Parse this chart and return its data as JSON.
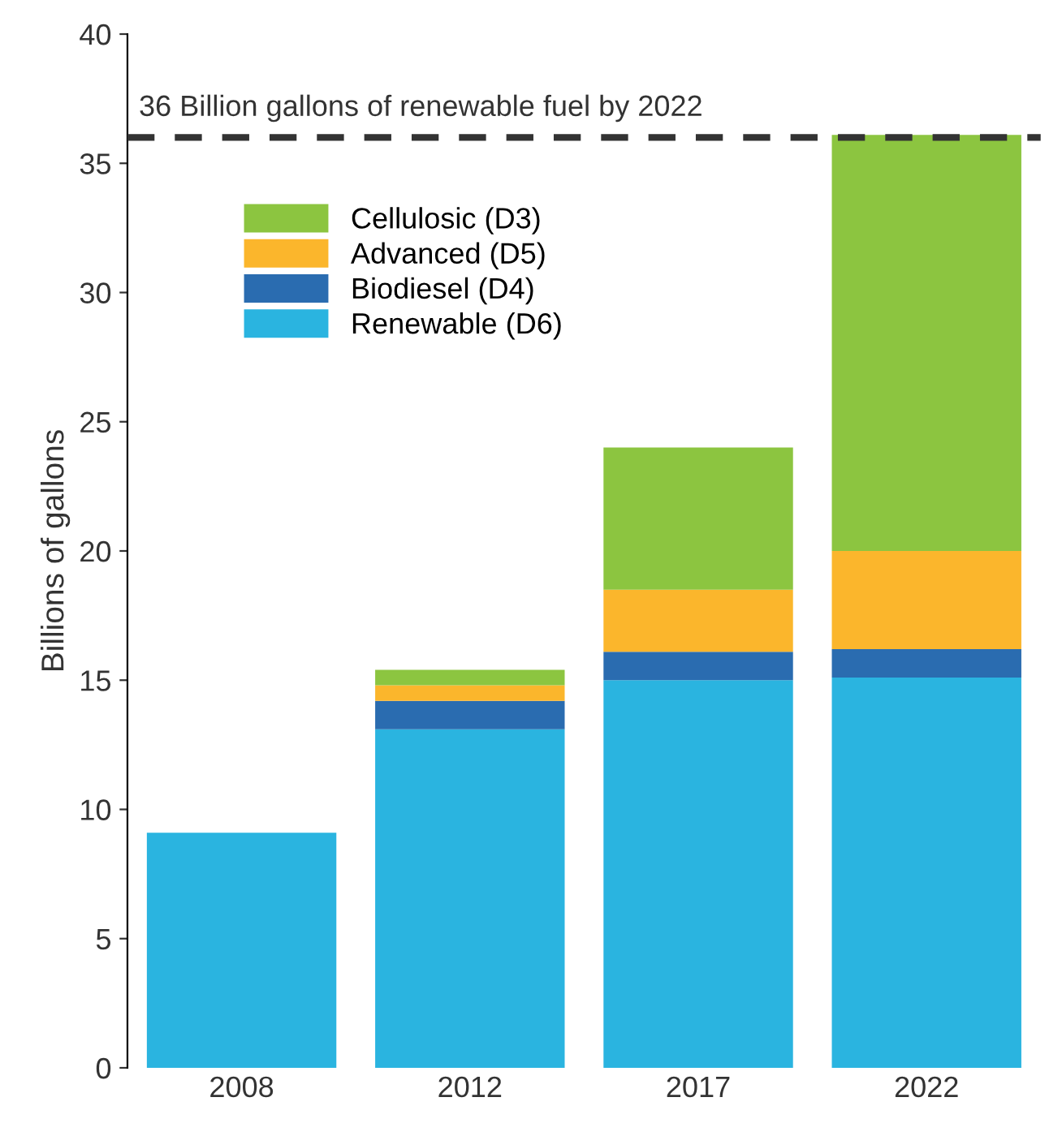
{
  "chart_data": {
    "type": "bar",
    "stacked": true,
    "ylabel": "Billions of gallons",
    "categories": [
      "2008",
      "2012",
      "2017",
      "2022"
    ],
    "series": [
      {
        "name": "Renewable (D6)",
        "color": "#2ab4e0",
        "values": [
          9.1,
          13.1,
          15.0,
          15.1
        ]
      },
      {
        "name": "Biodiesel (D4)",
        "color": "#2a6cb0",
        "values": [
          null,
          1.1,
          1.1,
          1.1
        ]
      },
      {
        "name": "Advanced (D5)",
        "color": "#fbb62c",
        "values": [
          null,
          0.6,
          2.4,
          3.8
        ]
      },
      {
        "name": "Cellulosic (D3)",
        "color": "#8cc540",
        "values": [
          null,
          0.6,
          5.5,
          16.1
        ]
      }
    ],
    "ylim": [
      0,
      40
    ],
    "yticks": [
      0,
      5,
      10,
      15,
      20,
      25,
      30,
      35,
      40
    ],
    "ref_lines": [
      {
        "axis": "y",
        "value": 36,
        "label": "36 Billion gallons of renewable fuel by 2022",
        "color": "#333333",
        "line_style": "dashed"
      }
    ],
    "legend": "top left",
    "grid": false
  }
}
